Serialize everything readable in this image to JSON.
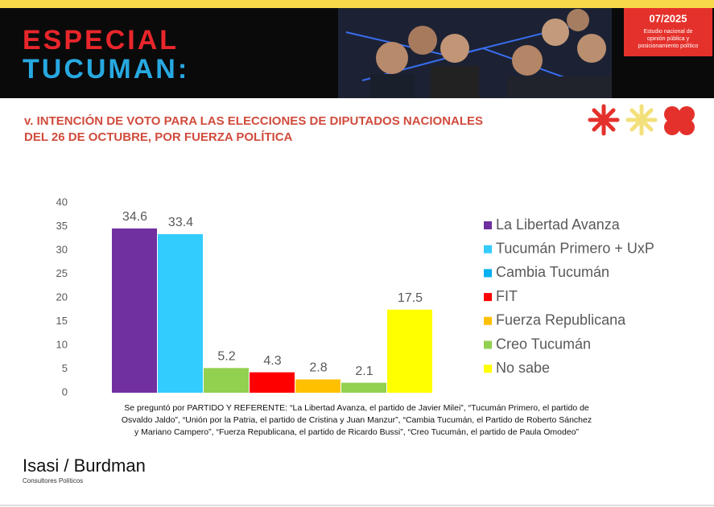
{
  "header": {
    "line1": "ESPECIAL",
    "line2": "TUCUMAN:",
    "date": "07/2025",
    "caption": [
      "Estudio nacional de",
      "opinión pública y",
      "posicionamiento político"
    ]
  },
  "chart_data": {
    "type": "bar",
    "title": [
      "v. INTENCIÓN DE VOTO PARA LAS ELECCIONES DE DIPUTADOS NACIONALES",
      "DEL 26 DE OCTUBRE, POR FUERZA POLÍTICA"
    ],
    "categories": [
      "La Libertad Avanza",
      "Tucumán Primero + UxP",
      "Cambia Tucumán",
      "FIT",
      "Fuerza Republicana",
      "Creo Tucumán",
      "No sabe"
    ],
    "values": [
      34.6,
      33.4,
      5.2,
      4.3,
      2.8,
      2.1,
      17.5
    ],
    "colors": [
      "#7030a0",
      "#33ccff",
      "#92d050",
      "#ff0000",
      "#ffc000",
      "#92d050",
      "#ffff00"
    ],
    "legend_colors": [
      "#7030a0",
      "#33ccff",
      "#00b0f0",
      "#ff0000",
      "#ffc000",
      "#92d050",
      "#ffff00"
    ],
    "ylim": [
      0,
      40
    ],
    "yticks": [
      0,
      5,
      10,
      15,
      20,
      25,
      30,
      35,
      40
    ],
    "grid": false,
    "legend": "right",
    "note": [
      "Se preguntó por PARTIDO Y REFERENTE: “La Libertad Avanza, el partido de Javier Milei”, “Tucumán Primero, el partido de",
      "Osvaldo Jaldo”, “Unión por la Patria, el partido de Cristina y Juan Manzur”, “Cambia Tucumán, el Partido de Roberto Sánchez",
      "y Mariano Campero”, “Fuerza Republicana, el partido de Ricardo Bussi”, “Creo Tucumán, el partido de Paula Omodeo”"
    ]
  },
  "footer": {
    "brand": "Isasi / Burdman",
    "tagline": "Consultores Políticos"
  }
}
